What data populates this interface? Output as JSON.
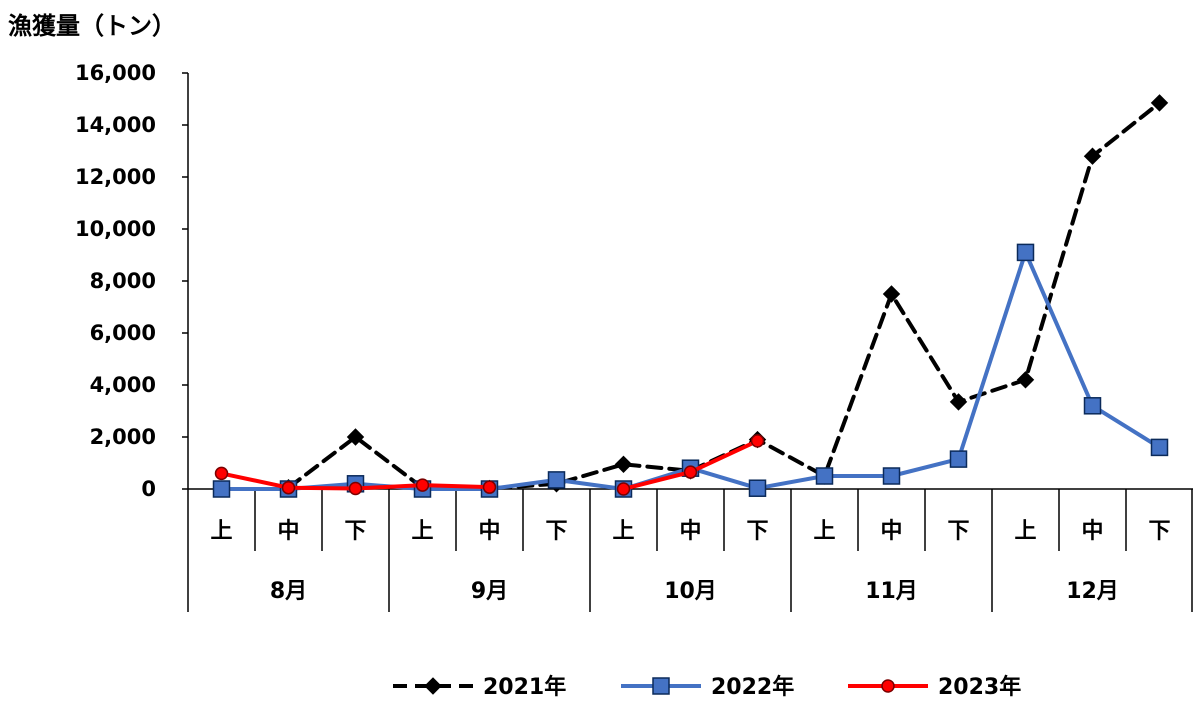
{
  "chart_data": {
    "type": "line",
    "ylabel": "漁獲量（トン）",
    "ylim": [
      0,
      16000
    ],
    "yticks": [
      0,
      2000,
      4000,
      6000,
      8000,
      10000,
      12000,
      14000,
      16000
    ],
    "ytick_labels": [
      "0",
      "2,000",
      "4,000",
      "6,000",
      "8,000",
      "10,000",
      "12,000",
      "14,000",
      "16,000"
    ],
    "categories": [
      "上",
      "中",
      "下",
      "上",
      "中",
      "下",
      "上",
      "中",
      "下",
      "上",
      "中",
      "下",
      "上",
      "中",
      "下"
    ],
    "groups": [
      {
        "label": "8月",
        "span": 3
      },
      {
        "label": "9月",
        "span": 3
      },
      {
        "label": "10月",
        "span": 3
      },
      {
        "label": "11月",
        "span": 3
      },
      {
        "label": "12月",
        "span": 3
      }
    ],
    "series": [
      {
        "name": "2021年",
        "color": "#000000",
        "line_style": "dashed",
        "marker": "diamond",
        "values": [
          null,
          50,
          2000,
          50,
          20,
          200,
          950,
          700,
          1900,
          500,
          7500,
          3350,
          4200,
          12800,
          14850
        ]
      },
      {
        "name": "2022年",
        "color": "#4472C4",
        "line_style": "solid",
        "marker": "square",
        "values": [
          0,
          0,
          200,
          0,
          0,
          350,
          0,
          800,
          30,
          500,
          500,
          1150,
          9100,
          3200,
          1600
        ]
      },
      {
        "name": "2023年",
        "color": "#FF0000",
        "line_style": "solid",
        "marker": "circle",
        "values": [
          600,
          50,
          20,
          150,
          70,
          null,
          0,
          650,
          1850,
          null,
          null,
          null,
          null,
          null,
          null
        ]
      }
    ],
    "legend_position": "bottom",
    "grid": false
  }
}
